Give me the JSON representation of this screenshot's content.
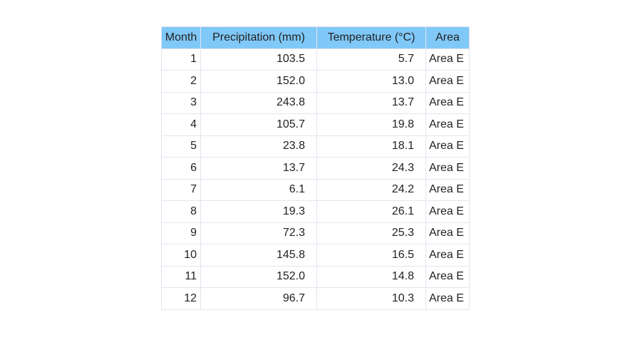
{
  "header_color": "#7fc8f8",
  "border_color": "#e4e4f0",
  "chart_data": {
    "type": "table",
    "columns": [
      "Month",
      "Precipitation (mm)",
      "Temperature (°C)",
      "Area"
    ],
    "rows": [
      [
        "1",
        "103.5",
        "5.7",
        "Area E"
      ],
      [
        "2",
        "152.0",
        "13.0",
        "Area E"
      ],
      [
        "3",
        "243.8",
        "13.7",
        "Area E"
      ],
      [
        "4",
        "105.7",
        "19.8",
        "Area E"
      ],
      [
        "5",
        "23.8",
        "18.1",
        "Area E"
      ],
      [
        "6",
        "13.7",
        "24.3",
        "Area E"
      ],
      [
        "7",
        "6.1",
        "24.2",
        "Area E"
      ],
      [
        "8",
        "19.3",
        "26.1",
        "Area E"
      ],
      [
        "9",
        "72.3",
        "25.3",
        "Area E"
      ],
      [
        "10",
        "145.8",
        "16.5",
        "Area E"
      ],
      [
        "11",
        "152.0",
        "14.8",
        "Area E"
      ],
      [
        "12",
        "96.7",
        "10.3",
        "Area E"
      ]
    ]
  }
}
